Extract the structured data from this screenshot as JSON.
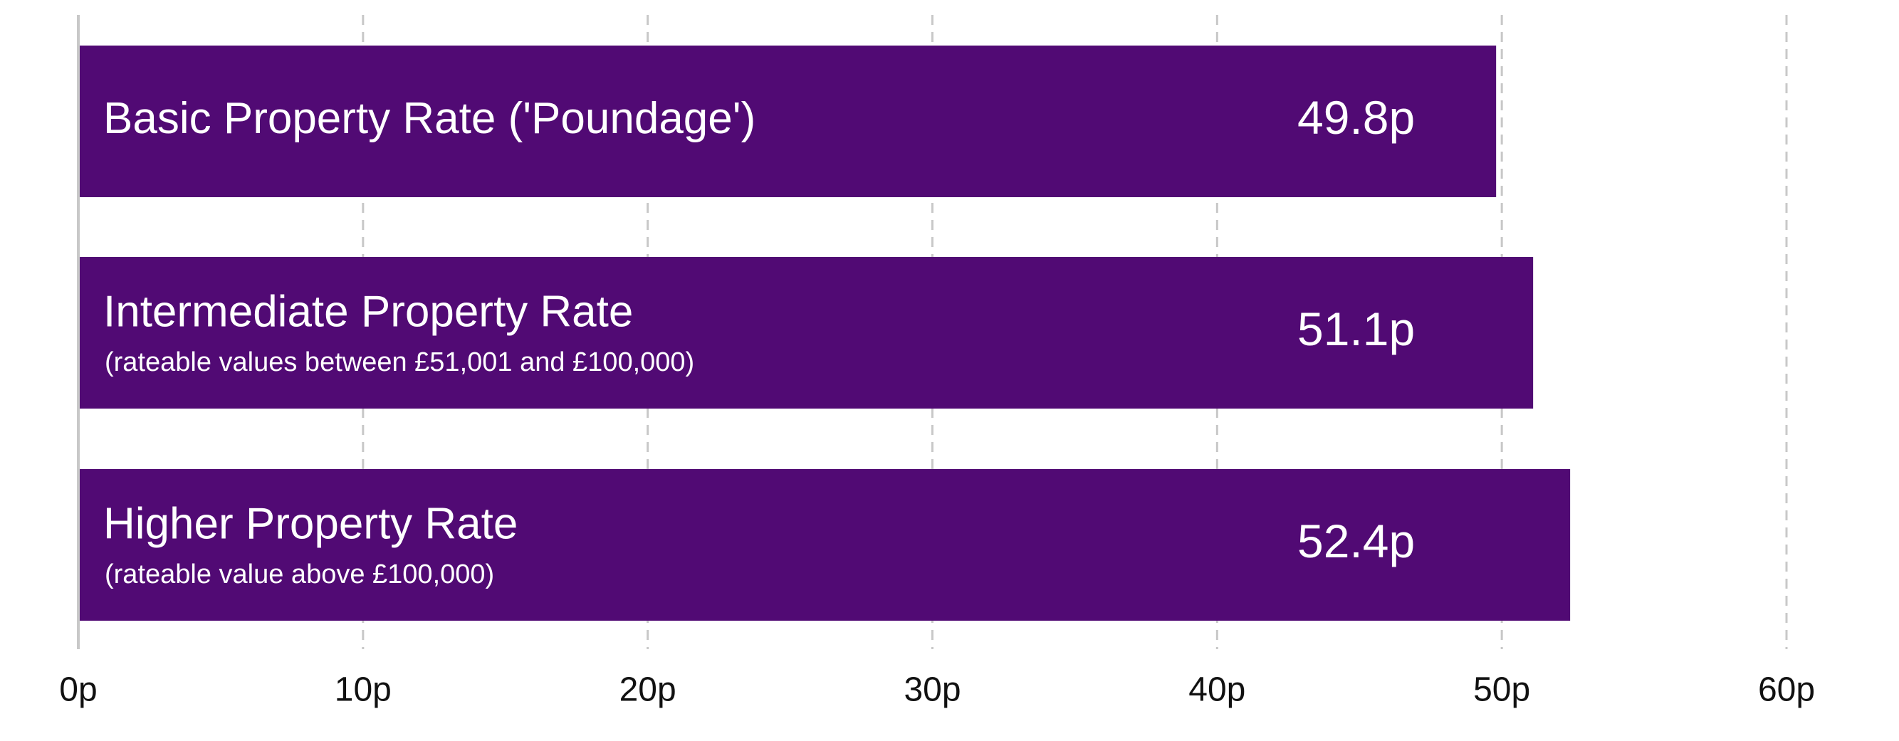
{
  "chart_data": {
    "type": "bar",
    "orientation": "horizontal",
    "categories": [
      "Basic Property Rate ('Poundage')",
      "Intermediate Property Rate",
      "Higher Property Rate"
    ],
    "category_notes": [
      null,
      "(rateable values between £51,001 and £100,000)",
      "(rateable value above £100,000)"
    ],
    "values": [
      49.8,
      51.1,
      52.4
    ],
    "value_labels": [
      "49.8p",
      "51.1p",
      "52.4p"
    ],
    "color": "#510a74",
    "xlim": [
      0,
      60
    ],
    "xticks": [
      {
        "value": 0,
        "label": "0p"
      },
      {
        "value": 10,
        "label": "10p"
      },
      {
        "value": 20,
        "label": "20p"
      },
      {
        "value": 30,
        "label": "30p"
      },
      {
        "value": 40,
        "label": "40p"
      },
      {
        "value": 50,
        "label": "50p"
      },
      {
        "value": 60,
        "label": "60p"
      }
    ],
    "grid": true
  }
}
